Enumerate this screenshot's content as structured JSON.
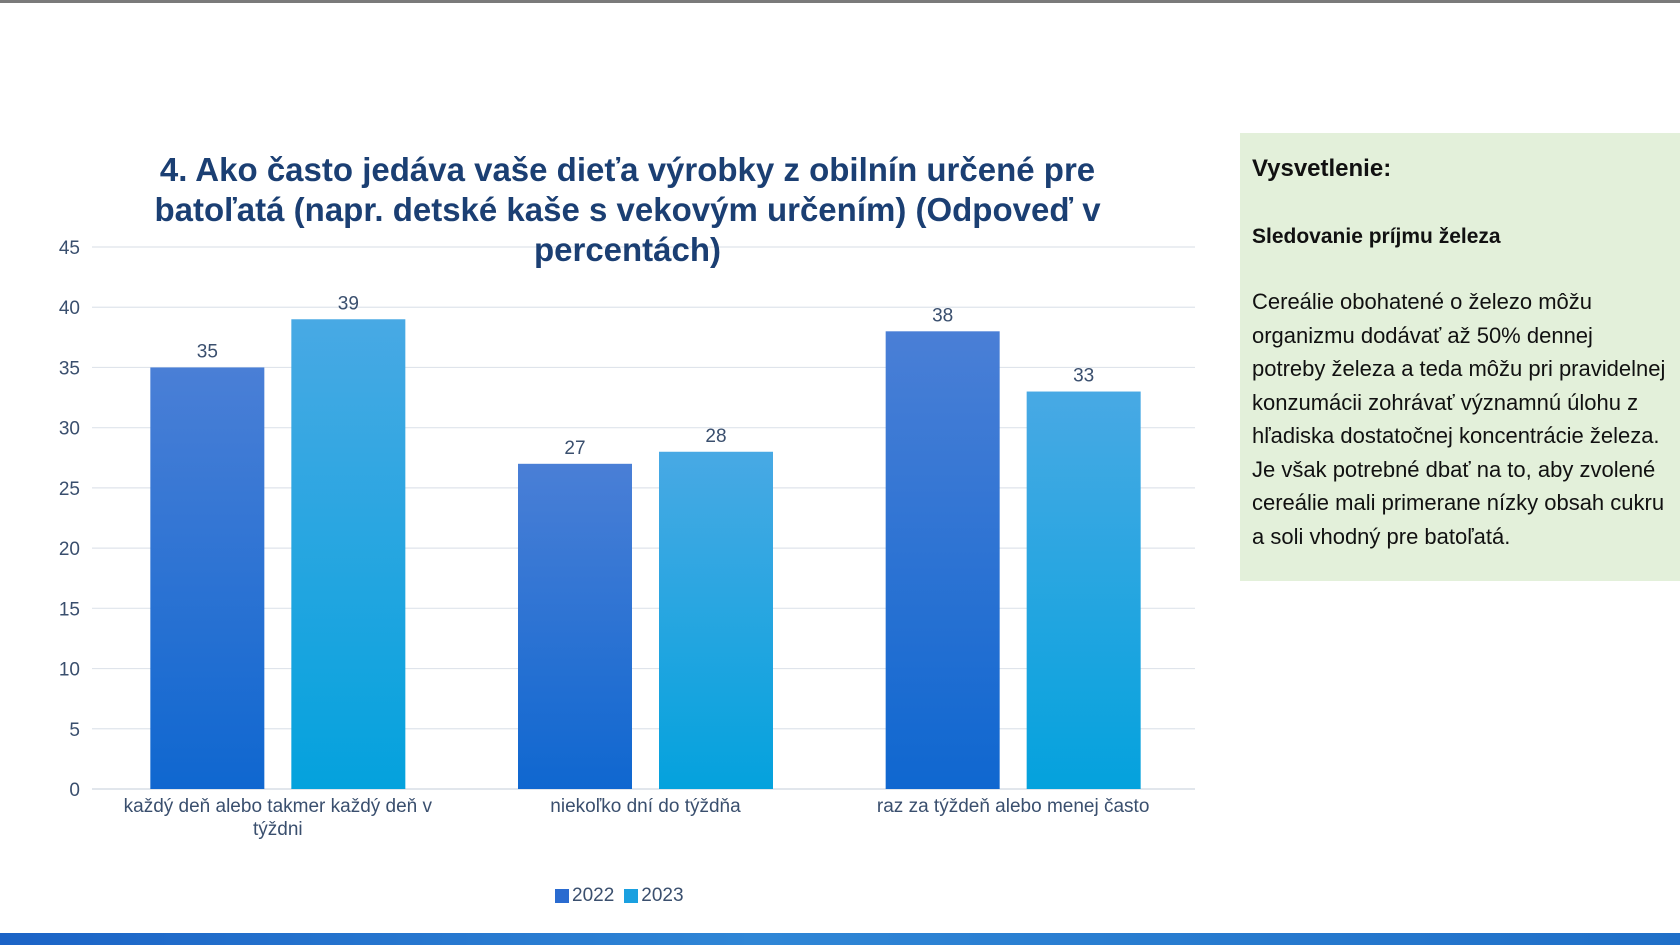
{
  "slide": {
    "title": "4. Ako často jedáva vaše dieťa výrobky z obilnín určené pre batoľatá (napr. detské kaše s vekovým určením) (Odpoveď v percentách)"
  },
  "explanation": {
    "heading": "Vysvetlenie:",
    "subheading": "Sledovanie príjmu železa",
    "body": "Cereálie obohatené o železo môžu organizmu dodávať až 50% dennej potreby železa a teda môžu pri pravidelnej konzumácii zohrávať významnú úlohu z hľadiska dostatočnej koncentrácie železa. Je však potrebné dbať na to, aby zvolené cereálie mali primerane nízky obsah cukru a soli vhodný pre batoľatá."
  },
  "colors": {
    "series_2022": "#2a6bd0",
    "series_2023": "#1aa0e0",
    "title": "#1b3f73",
    "panel": "#e3f0da"
  },
  "chart_data": {
    "type": "bar",
    "title": "4. Ako často jedáva vaše dieťa výrobky z obilnín určené pre batoľatá (napr. detské kaše s vekovým určením) (Odpoveď v percentách)",
    "categories": [
      "každý deň alebo takmer každý deň v týždni",
      "niekoľko dní do týždňa",
      "raz za týždeň alebo menej často"
    ],
    "series": [
      {
        "name": "2022",
        "values": [
          35,
          27,
          38
        ]
      },
      {
        "name": "2023",
        "values": [
          39,
          28,
          33
        ]
      }
    ],
    "ylim": [
      0,
      45
    ],
    "yticks": [
      0,
      5,
      10,
      15,
      20,
      25,
      30,
      35,
      40,
      45
    ],
    "grid": true,
    "data_labels": true,
    "legend_position": "bottom"
  }
}
